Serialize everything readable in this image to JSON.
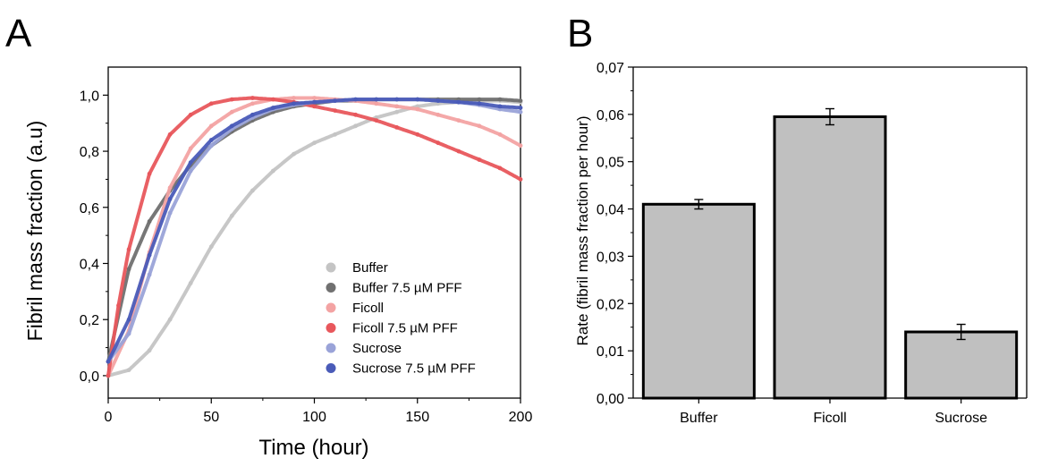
{
  "panels": [
    {
      "letter": "A",
      "chart_data": {
        "type": "scatter",
        "xlabel": "Time (hour)",
        "ylabel": "Fibril mass fraction (a.u)",
        "xlim": [
          0,
          200
        ],
        "ylim": [
          -0.08,
          1.1
        ],
        "xticks": [
          0,
          50,
          100,
          150,
          200
        ],
        "yticks": [
          0.0,
          0.2,
          0.4,
          0.6,
          0.8,
          1.0
        ],
        "ytick_labels": [
          "0,0",
          "0,2",
          "0,4",
          "0,6",
          "0,8",
          "1,0"
        ],
        "grid": false,
        "legend_position": "bottom-right",
        "series": [
          {
            "name": "Buffer",
            "color": "#c4c4c4",
            "x": [
              0,
              10,
              20,
              30,
              40,
              50,
              60,
              70,
              80,
              90,
              100,
              110,
              120,
              130,
              140,
              150,
              160,
              170,
              180,
              190,
              200
            ],
            "y": [
              0.0,
              0.02,
              0.09,
              0.2,
              0.33,
              0.46,
              0.57,
              0.66,
              0.73,
              0.79,
              0.83,
              0.86,
              0.89,
              0.92,
              0.94,
              0.96,
              0.97,
              0.975,
              0.98,
              0.98,
              0.975
            ]
          },
          {
            "name": "Buffer 7.5 µM PFF",
            "color": "#707070",
            "x": [
              0,
              10,
              20,
              30,
              40,
              50,
              60,
              70,
              80,
              90,
              100,
              110,
              120,
              130,
              140,
              150,
              160,
              170,
              180,
              190,
              200
            ],
            "y": [
              0.05,
              0.38,
              0.55,
              0.66,
              0.75,
              0.82,
              0.87,
              0.91,
              0.94,
              0.96,
              0.97,
              0.98,
              0.98,
              0.985,
              0.985,
              0.985,
              0.985,
              0.985,
              0.985,
              0.985,
              0.98
            ]
          },
          {
            "name": "Ficoll",
            "color": "#f3a3a3",
            "x": [
              0,
              10,
              20,
              30,
              40,
              50,
              60,
              70,
              80,
              90,
              100,
              110,
              120,
              130,
              140,
              150,
              160,
              170,
              180,
              190,
              200
            ],
            "y": [
              0.0,
              0.16,
              0.44,
              0.67,
              0.81,
              0.89,
              0.94,
              0.97,
              0.985,
              0.99,
              0.99,
              0.985,
              0.98,
              0.97,
              0.96,
              0.95,
              0.93,
              0.91,
              0.89,
              0.86,
              0.82
            ]
          },
          {
            "name": "Ficoll 7.5 µM PFF",
            "color": "#e8575c",
            "x": [
              0,
              5,
              10,
              20,
              30,
              40,
              50,
              60,
              70,
              80,
              90,
              100,
              110,
              120,
              130,
              140,
              150,
              160,
              170,
              180,
              190,
              200
            ],
            "y": [
              0.0,
              0.25,
              0.45,
              0.72,
              0.86,
              0.93,
              0.97,
              0.985,
              0.99,
              0.985,
              0.975,
              0.96,
              0.945,
              0.93,
              0.91,
              0.885,
              0.86,
              0.83,
              0.8,
              0.77,
              0.74,
              0.7
            ]
          },
          {
            "name": "Sucrose",
            "color": "#9aa3d8",
            "x": [
              0,
              10,
              20,
              30,
              40,
              50,
              60,
              70,
              80,
              90,
              100,
              110,
              120,
              130,
              140,
              150,
              160,
              170,
              180,
              190,
              200
            ],
            "y": [
              0.05,
              0.15,
              0.36,
              0.58,
              0.73,
              0.82,
              0.88,
              0.92,
              0.95,
              0.965,
              0.975,
              0.98,
              0.985,
              0.985,
              0.985,
              0.985,
              0.98,
              0.975,
              0.965,
              0.95,
              0.94
            ]
          },
          {
            "name": "Sucrose 7.5 µM PFF",
            "color": "#4a5bb8",
            "x": [
              0,
              10,
              20,
              30,
              40,
              50,
              60,
              70,
              80,
              90,
              100,
              110,
              120,
              130,
              140,
              150,
              160,
              170,
              180,
              190,
              200
            ],
            "y": [
              0.05,
              0.2,
              0.43,
              0.63,
              0.76,
              0.84,
              0.89,
              0.93,
              0.955,
              0.97,
              0.975,
              0.98,
              0.985,
              0.985,
              0.985,
              0.985,
              0.98,
              0.975,
              0.97,
              0.96,
              0.955
            ]
          }
        ]
      }
    },
    {
      "letter": "B",
      "chart_data": {
        "type": "bar",
        "categories": [
          "Buffer",
          "Ficoll",
          "Sucrose"
        ],
        "values": [
          0.041,
          0.0595,
          0.014
        ],
        "errors": [
          0.001,
          0.0017,
          0.0016
        ],
        "ylabel": "Rate (fibril mass fraction per hour)",
        "xlabel": "",
        "ylim": [
          0,
          0.07
        ],
        "yticks": [
          0,
          0.01,
          0.02,
          0.03,
          0.04,
          0.05,
          0.06,
          0.07
        ],
        "ytick_labels": [
          "0,00",
          "0,01",
          "0,02",
          "0,03",
          "0,04",
          "0,05",
          "0,06",
          "0,07"
        ],
        "bar_color": "#c0c0c0",
        "grid": false
      }
    }
  ]
}
